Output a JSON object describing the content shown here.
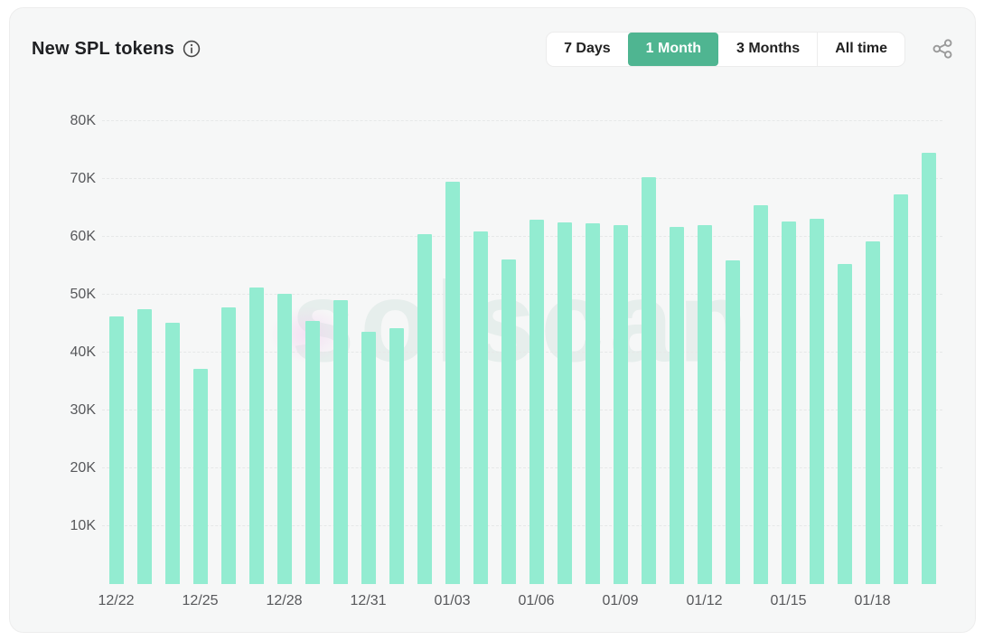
{
  "header": {
    "title": "New SPL tokens",
    "tabs": [
      {
        "label": "7 Days",
        "active": false
      },
      {
        "label": "1 Month",
        "active": true
      },
      {
        "label": "3 Months",
        "active": false
      },
      {
        "label": "All time",
        "active": false
      }
    ]
  },
  "watermark": "solscan",
  "colors": {
    "bar": "#93ecd1",
    "active_tab": "#4fb591",
    "axis_text": "#57585b",
    "gridline": "#e6e8e8",
    "card_bg": "#f6f7f7"
  },
  "chart_data": {
    "type": "bar",
    "title": "New SPL tokens",
    "xlabel": "",
    "ylabel": "",
    "ylim": [
      0,
      80000
    ],
    "grid": "horizontal-dashed",
    "legend": "none",
    "x": [
      "12/22",
      "12/23",
      "12/24",
      "12/25",
      "12/26",
      "12/27",
      "12/28",
      "12/29",
      "12/30",
      "12/31",
      "01/01",
      "01/02",
      "01/03",
      "01/04",
      "01/05",
      "01/06",
      "01/07",
      "01/08",
      "01/09",
      "01/10",
      "01/11",
      "01/12",
      "01/13",
      "01/14",
      "01/15",
      "01/16",
      "01/17",
      "01/18",
      "01/19",
      "01/20"
    ],
    "values": [
      46300,
      47500,
      45200,
      37200,
      47800,
      51300,
      50200,
      45400,
      49100,
      43600,
      44200,
      60400,
      69500,
      61000,
      56100,
      63000,
      62500,
      62400,
      62000,
      70300,
      61800,
      62100,
      55900,
      65500,
      62600,
      63200,
      55300,
      59300,
      67300,
      74600
    ],
    "x_tick_every": 3,
    "x_tick_labels": [
      "12/22",
      "12/25",
      "12/28",
      "12/31",
      "01/03",
      "01/06",
      "01/09",
      "01/12",
      "01/15",
      "01/18"
    ],
    "y_ticks": {
      "values": [
        10000,
        20000,
        30000,
        40000,
        50000,
        60000,
        70000,
        80000
      ],
      "labels": [
        "10K",
        "20K",
        "30K",
        "40K",
        "50K",
        "60K",
        "70K",
        "80K"
      ]
    }
  }
}
